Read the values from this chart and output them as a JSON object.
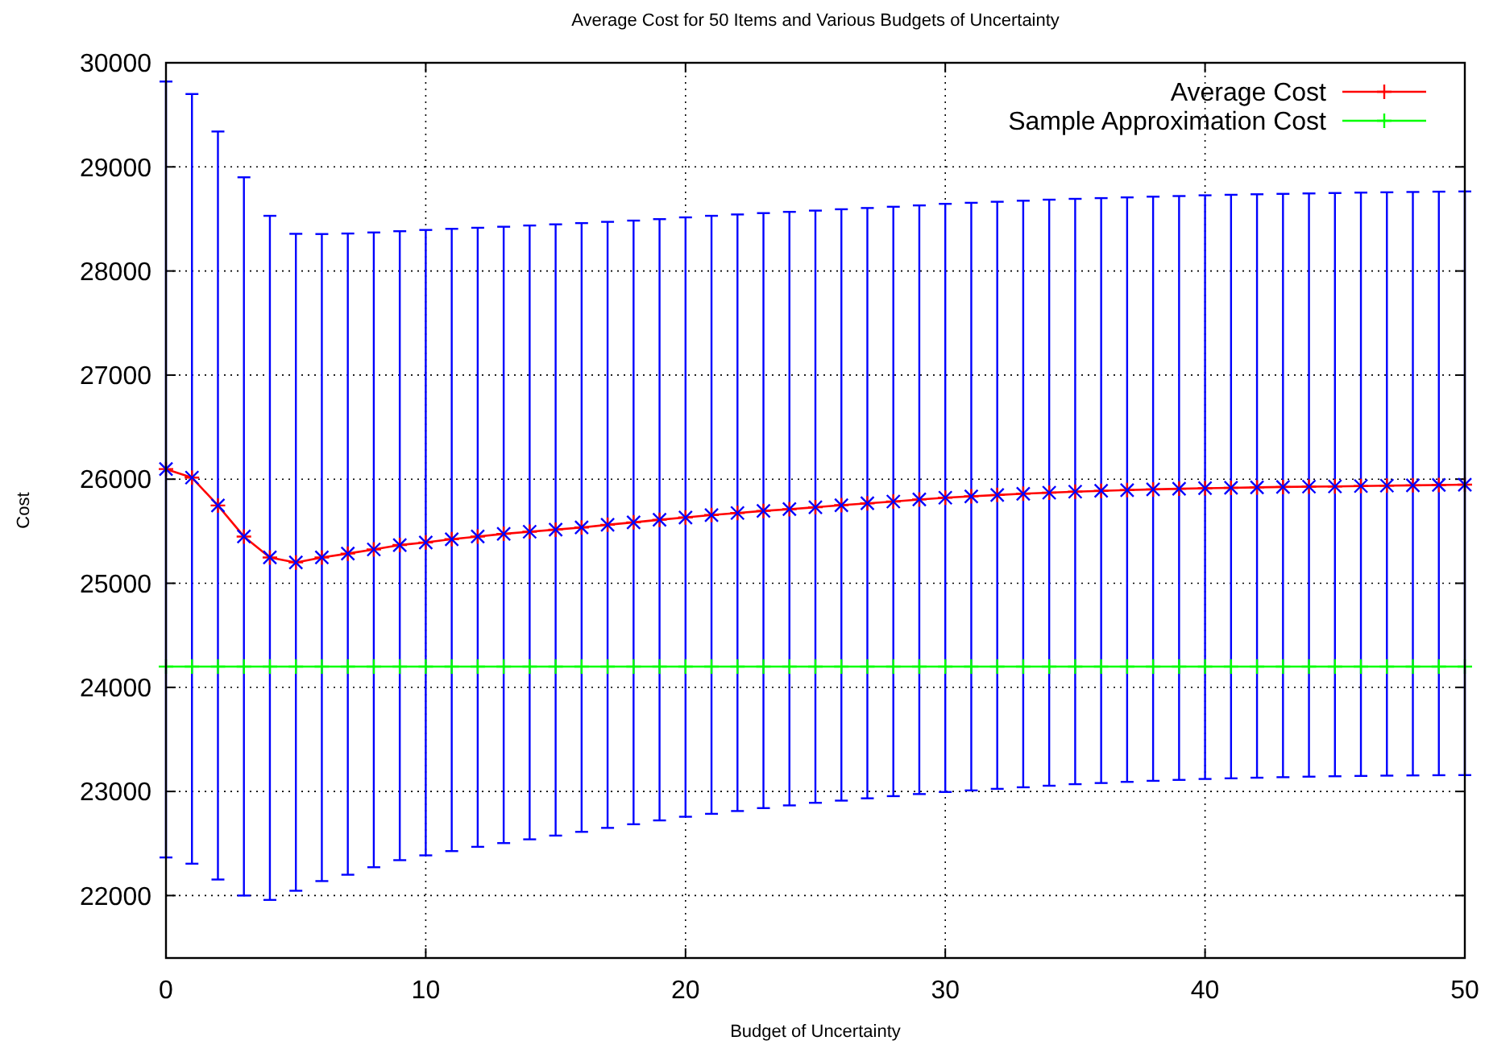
{
  "chart_data": {
    "type": "line",
    "title": "Average Cost for 50 Items and Various Budgets of Uncertainty",
    "xlabel": "Budget of Uncertainty",
    "ylabel": "Cost",
    "x": [
      0,
      1,
      2,
      3,
      4,
      5,
      6,
      7,
      8,
      9,
      10,
      11,
      12,
      13,
      14,
      15,
      16,
      17,
      18,
      19,
      20,
      21,
      22,
      23,
      24,
      25,
      26,
      27,
      28,
      29,
      30,
      31,
      32,
      33,
      34,
      35,
      36,
      37,
      38,
      39,
      40,
      41,
      42,
      43,
      44,
      45,
      46,
      47,
      48,
      49,
      50
    ],
    "series": [
      {
        "name": "Average Cost",
        "color": "#ff0000",
        "marker": "cross",
        "values": [
          26097,
          26015,
          25747,
          25449,
          25248,
          25200,
          25248,
          25285,
          25325,
          25367,
          25392,
          25423,
          25449,
          25475,
          25495,
          25515,
          25536,
          25562,
          25585,
          25610,
          25632,
          25655,
          25675,
          25695,
          25712,
          25730,
          25750,
          25768,
          25785,
          25805,
          25822,
          25835,
          25848,
          25860,
          25870,
          25880,
          25888,
          25895,
          25902,
          25908,
          25913,
          25917,
          25921,
          25925,
          25928,
          25930,
          25934,
          25938,
          25941,
          25944,
          25947
        ]
      },
      {
        "name": "Sample Approximation Cost",
        "color": "#00ff00",
        "marker": "cross",
        "values": [
          24200,
          24200,
          24200,
          24200,
          24200,
          24200,
          24200,
          24200,
          24200,
          24200,
          24200,
          24200,
          24200,
          24200,
          24200,
          24200,
          24200,
          24200,
          24200,
          24200,
          24200,
          24200,
          24200,
          24200,
          24200,
          24200,
          24200,
          24200,
          24200,
          24200,
          24200,
          24200,
          24200,
          24200,
          24200,
          24200,
          24200,
          24200,
          24200,
          24200,
          24200,
          24200,
          24200,
          24200,
          24200,
          24200,
          24200,
          24200,
          24200,
          24200,
          24200
        ]
      },
      {
        "type": "scatter",
        "color": "#0000ff",
        "marker": "cross",
        "values": [
          26097,
          26015,
          25747,
          25449,
          25248,
          25200,
          25248,
          25285,
          25325,
          25367,
          25392,
          25423,
          25449,
          25475,
          25495,
          25515,
          25536,
          25562,
          25585,
          25610,
          25632,
          25655,
          25675,
          25695,
          25712,
          25730,
          25750,
          25768,
          25785,
          25805,
          25822,
          25835,
          25848,
          25860,
          25870,
          25880,
          25888,
          25895,
          25902,
          25908,
          25913,
          25917,
          25921,
          25925,
          25928,
          25930,
          25934,
          25938,
          25941,
          25944,
          25947
        ],
        "errors": [
          [
            22366,
            29820
          ],
          [
            22306,
            29700
          ],
          [
            22154,
            29340
          ],
          [
            22000,
            28900
          ],
          [
            21958,
            28530
          ],
          [
            22046,
            28357
          ],
          [
            22139,
            28355
          ],
          [
            22200,
            28360
          ],
          [
            22272,
            28370
          ],
          [
            22340,
            28382
          ],
          [
            22386,
            28394
          ],
          [
            22427,
            28405
          ],
          [
            22468,
            28415
          ],
          [
            22504,
            28425
          ],
          [
            22540,
            28437
          ],
          [
            22576,
            28448
          ],
          [
            22612,
            28460
          ],
          [
            22650,
            28472
          ],
          [
            22685,
            28484
          ],
          [
            22722,
            28498
          ],
          [
            22757,
            28515
          ],
          [
            22785,
            28530
          ],
          [
            22812,
            28543
          ],
          [
            22840,
            28556
          ],
          [
            22866,
            28568
          ],
          [
            22891,
            28580
          ],
          [
            22912,
            28593
          ],
          [
            22934,
            28605
          ],
          [
            22955,
            28617
          ],
          [
            22975,
            28630
          ],
          [
            22995,
            28645
          ],
          [
            23010,
            28655
          ],
          [
            23025,
            28665
          ],
          [
            23040,
            28675
          ],
          [
            23055,
            28685
          ],
          [
            23070,
            28693
          ],
          [
            23081,
            28700
          ],
          [
            23092,
            28707
          ],
          [
            23102,
            28714
          ],
          [
            23111,
            28720
          ],
          [
            23120,
            28727
          ],
          [
            23126,
            28732
          ],
          [
            23132,
            28737
          ],
          [
            23137,
            28741
          ],
          [
            23142,
            28745
          ],
          [
            23146,
            28749
          ],
          [
            23149,
            28753
          ],
          [
            23152,
            28756
          ],
          [
            23154,
            28759
          ],
          [
            23156,
            28762
          ],
          [
            23157,
            28764
          ]
        ]
      }
    ],
    "xlim": [
      0,
      50
    ],
    "xticks": [
      0,
      10,
      20,
      30,
      40,
      50
    ],
    "ylim": [
      21400,
      30000
    ],
    "yticks": [
      22000,
      23000,
      24000,
      25000,
      26000,
      27000,
      28000,
      29000,
      30000
    ],
    "grid": true,
    "legend": "top right"
  }
}
